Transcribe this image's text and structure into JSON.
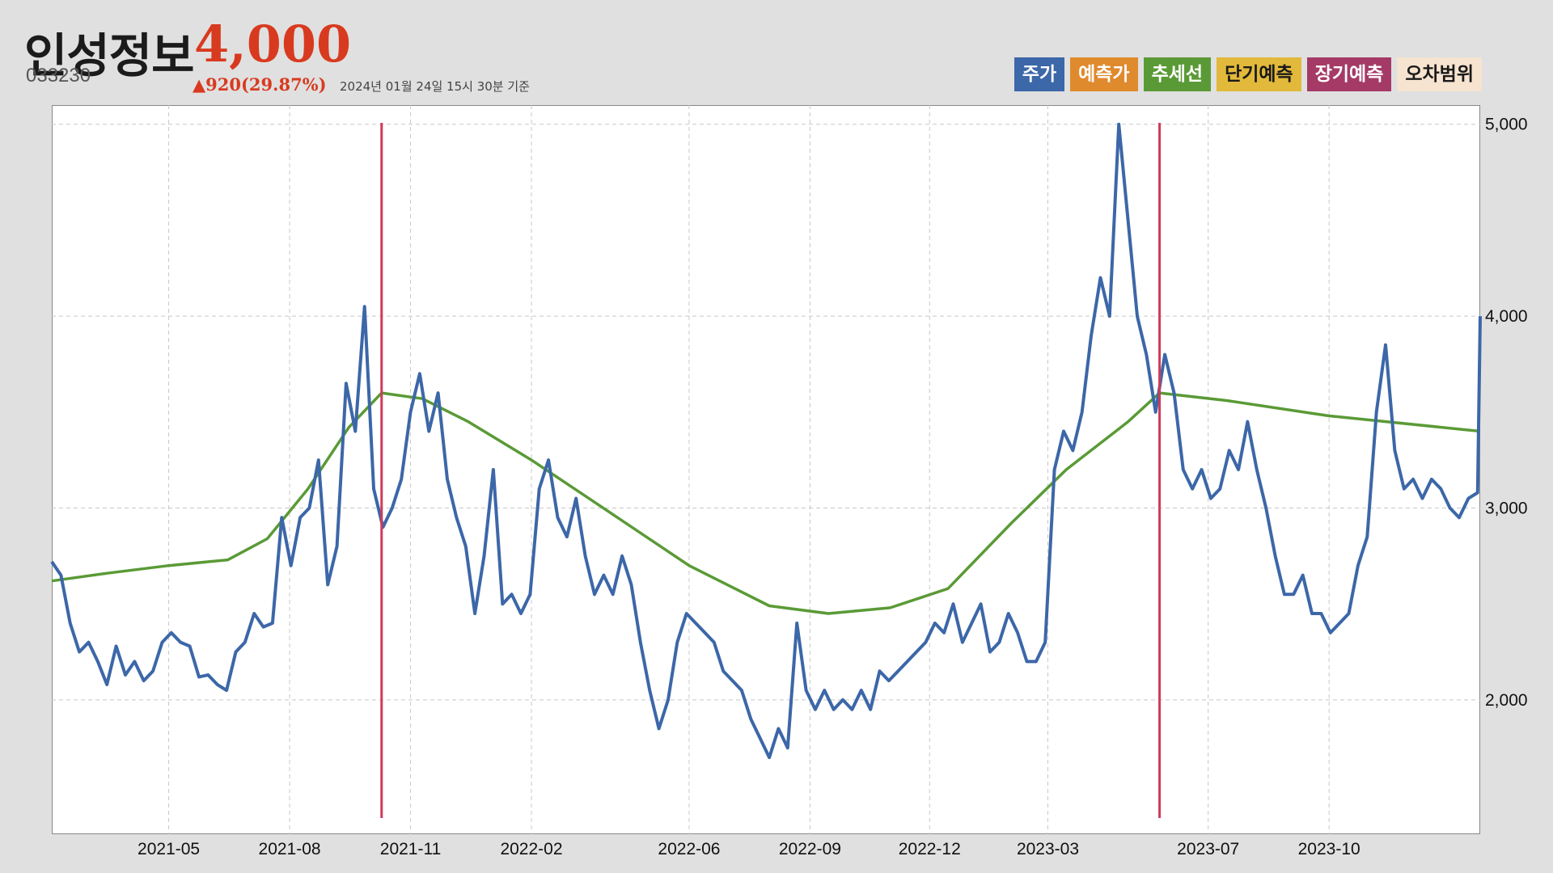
{
  "header": {
    "name": "인성정보",
    "code": "033230",
    "price": "4,000",
    "change": "▲920(29.87%)",
    "as_of": "2024년 01월 24일 15시 30분 기준"
  },
  "legend": [
    {
      "label": "주가",
      "color": "#3c67a8",
      "text_color": "#ffffff"
    },
    {
      "label": "예측가",
      "color": "#e08a2e",
      "text_color": "#ffffff"
    },
    {
      "label": "추세선",
      "color": "#5a9a36",
      "text_color": "#ffffff"
    },
    {
      "label": "단기예측",
      "color": "#e2b93a",
      "text_color": "#1a1a1a"
    },
    {
      "label": "장기예측",
      "color": "#a53a67",
      "text_color": "#ffffff"
    },
    {
      "label": "오차범위",
      "color": "#f6e4d0",
      "text_color": "#1a1a1a"
    }
  ],
  "chart_data": {
    "type": "line",
    "x_axis": {
      "range": [
        "2021-02-01",
        "2024-01-24"
      ],
      "ticks": [
        "2021-05",
        "2021-08",
        "2021-11",
        "2022-02",
        "2022-06",
        "2022-09",
        "2022-12",
        "2023-03",
        "2023-07",
        "2023-10"
      ]
    },
    "y_axis": {
      "position": "right",
      "range": [
        1300,
        5100
      ],
      "ticks": [
        2000,
        3000,
        4000,
        5000
      ],
      "tick_labels": [
        "2,000",
        "3,000",
        "4,000",
        "5,000"
      ]
    },
    "grid": true,
    "vertical_markers": [
      {
        "date": "2021-10-10",
        "color": "#d03a5a"
      },
      {
        "date": "2023-05-25",
        "color": "#d03a5a"
      }
    ],
    "series": [
      {
        "name": "주가",
        "color": "#3c67a8",
        "points": [
          [
            "2021-02-01",
            2720
          ],
          [
            "2021-02-08",
            2650
          ],
          [
            "2021-02-15",
            2400
          ],
          [
            "2021-02-22",
            2250
          ],
          [
            "2021-03-01",
            2300
          ],
          [
            "2021-03-08",
            2200
          ],
          [
            "2021-03-15",
            2080
          ],
          [
            "2021-03-22",
            2280
          ],
          [
            "2021-03-29",
            2130
          ],
          [
            "2021-04-05",
            2200
          ],
          [
            "2021-04-12",
            2100
          ],
          [
            "2021-04-19",
            2150
          ],
          [
            "2021-04-26",
            2300
          ],
          [
            "2021-05-03",
            2350
          ],
          [
            "2021-05-10",
            2300
          ],
          [
            "2021-05-17",
            2280
          ],
          [
            "2021-05-24",
            2120
          ],
          [
            "2021-05-31",
            2130
          ],
          [
            "2021-06-07",
            2080
          ],
          [
            "2021-06-14",
            2050
          ],
          [
            "2021-06-21",
            2250
          ],
          [
            "2021-06-28",
            2300
          ],
          [
            "2021-07-05",
            2450
          ],
          [
            "2021-07-12",
            2380
          ],
          [
            "2021-07-19",
            2400
          ],
          [
            "2021-07-26",
            2950
          ],
          [
            "2021-08-02",
            2700
          ],
          [
            "2021-08-09",
            2950
          ],
          [
            "2021-08-16",
            3000
          ],
          [
            "2021-08-23",
            3250
          ],
          [
            "2021-08-30",
            2600
          ],
          [
            "2021-09-06",
            2800
          ],
          [
            "2021-09-13",
            3650
          ],
          [
            "2021-09-20",
            3400
          ],
          [
            "2021-09-27",
            4050
          ],
          [
            "2021-10-04",
            3100
          ],
          [
            "2021-10-11",
            2900
          ],
          [
            "2021-10-18",
            3000
          ],
          [
            "2021-10-25",
            3150
          ],
          [
            "2021-11-01",
            3500
          ],
          [
            "2021-11-08",
            3700
          ],
          [
            "2021-11-15",
            3400
          ],
          [
            "2021-11-22",
            3600
          ],
          [
            "2021-11-29",
            3150
          ],
          [
            "2021-12-06",
            2950
          ],
          [
            "2021-12-13",
            2800
          ],
          [
            "2021-12-20",
            2450
          ],
          [
            "2021-12-27",
            2750
          ],
          [
            "2022-01-03",
            3200
          ],
          [
            "2022-01-10",
            2500
          ],
          [
            "2022-01-17",
            2550
          ],
          [
            "2022-01-24",
            2450
          ],
          [
            "2022-01-31",
            2550
          ],
          [
            "2022-02-07",
            3100
          ],
          [
            "2022-02-14",
            3250
          ],
          [
            "2022-02-21",
            2950
          ],
          [
            "2022-02-28",
            2850
          ],
          [
            "2022-03-07",
            3050
          ],
          [
            "2022-03-14",
            2750
          ],
          [
            "2022-03-21",
            2550
          ],
          [
            "2022-03-28",
            2650
          ],
          [
            "2022-04-04",
            2550
          ],
          [
            "2022-04-11",
            2750
          ],
          [
            "2022-04-18",
            2600
          ],
          [
            "2022-04-25",
            2300
          ],
          [
            "2022-05-02",
            2050
          ],
          [
            "2022-05-09",
            1850
          ],
          [
            "2022-05-16",
            2000
          ],
          [
            "2022-05-23",
            2300
          ],
          [
            "2022-05-30",
            2450
          ],
          [
            "2022-06-06",
            2400
          ],
          [
            "2022-06-13",
            2350
          ],
          [
            "2022-06-20",
            2300
          ],
          [
            "2022-06-27",
            2150
          ],
          [
            "2022-07-04",
            2100
          ],
          [
            "2022-07-11",
            2050
          ],
          [
            "2022-07-18",
            1900
          ],
          [
            "2022-07-25",
            1800
          ],
          [
            "2022-08-01",
            1700
          ],
          [
            "2022-08-08",
            1850
          ],
          [
            "2022-08-15",
            1750
          ],
          [
            "2022-08-22",
            2400
          ],
          [
            "2022-08-29",
            2050
          ],
          [
            "2022-09-05",
            1950
          ],
          [
            "2022-09-12",
            2050
          ],
          [
            "2022-09-19",
            1950
          ],
          [
            "2022-09-26",
            2000
          ],
          [
            "2022-10-03",
            1950
          ],
          [
            "2022-10-10",
            2050
          ],
          [
            "2022-10-17",
            1950
          ],
          [
            "2022-10-24",
            2150
          ],
          [
            "2022-10-31",
            2100
          ],
          [
            "2022-11-07",
            2150
          ],
          [
            "2022-11-14",
            2200
          ],
          [
            "2022-11-21",
            2250
          ],
          [
            "2022-11-28",
            2300
          ],
          [
            "2022-12-05",
            2400
          ],
          [
            "2022-12-12",
            2350
          ],
          [
            "2022-12-19",
            2500
          ],
          [
            "2022-12-26",
            2300
          ],
          [
            "2023-01-02",
            2400
          ],
          [
            "2023-01-09",
            2500
          ],
          [
            "2023-01-16",
            2250
          ],
          [
            "2023-01-23",
            2300
          ],
          [
            "2023-01-30",
            2450
          ],
          [
            "2023-02-06",
            2350
          ],
          [
            "2023-02-13",
            2200
          ],
          [
            "2023-02-20",
            2200
          ],
          [
            "2023-02-27",
            2300
          ],
          [
            "2023-03-06",
            3200
          ],
          [
            "2023-03-13",
            3400
          ],
          [
            "2023-03-20",
            3300
          ],
          [
            "2023-03-27",
            3500
          ],
          [
            "2023-04-03",
            3900
          ],
          [
            "2023-04-10",
            4200
          ],
          [
            "2023-04-17",
            4000
          ],
          [
            "2023-04-24",
            5000
          ],
          [
            "2023-05-01",
            4500
          ],
          [
            "2023-05-08",
            4000
          ],
          [
            "2023-05-15",
            3800
          ],
          [
            "2023-05-22",
            3500
          ],
          [
            "2023-05-29",
            3800
          ],
          [
            "2023-06-05",
            3600
          ],
          [
            "2023-06-12",
            3200
          ],
          [
            "2023-06-19",
            3100
          ],
          [
            "2023-06-26",
            3200
          ],
          [
            "2023-07-03",
            3050
          ],
          [
            "2023-07-10",
            3100
          ],
          [
            "2023-07-17",
            3300
          ],
          [
            "2023-07-24",
            3200
          ],
          [
            "2023-07-31",
            3450
          ],
          [
            "2023-08-07",
            3200
          ],
          [
            "2023-08-14",
            3000
          ],
          [
            "2023-08-21",
            2750
          ],
          [
            "2023-08-28",
            2550
          ],
          [
            "2023-09-04",
            2550
          ],
          [
            "2023-09-11",
            2650
          ],
          [
            "2023-09-18",
            2450
          ],
          [
            "2023-09-25",
            2450
          ],
          [
            "2023-10-02",
            2350
          ],
          [
            "2023-10-09",
            2400
          ],
          [
            "2023-10-16",
            2450
          ],
          [
            "2023-10-23",
            2700
          ],
          [
            "2023-10-30",
            2850
          ],
          [
            "2023-11-06",
            3500
          ],
          [
            "2023-11-13",
            3850
          ],
          [
            "2023-11-20",
            3300
          ],
          [
            "2023-11-27",
            3100
          ],
          [
            "2023-12-04",
            3150
          ],
          [
            "2023-12-11",
            3050
          ],
          [
            "2023-12-18",
            3150
          ],
          [
            "2023-12-25",
            3100
          ],
          [
            "2024-01-01",
            3000
          ],
          [
            "2024-01-08",
            2950
          ],
          [
            "2024-01-15",
            3050
          ],
          [
            "2024-01-22",
            3080
          ],
          [
            "2024-01-24",
            4000
          ]
        ]
      },
      {
        "name": "추세선",
        "color": "#5a9a36",
        "points": [
          [
            "2021-02-01",
            2620
          ],
          [
            "2021-03-15",
            2660
          ],
          [
            "2021-05-01",
            2700
          ],
          [
            "2021-06-15",
            2730
          ],
          [
            "2021-07-15",
            2840
          ],
          [
            "2021-08-15",
            3100
          ],
          [
            "2021-09-15",
            3420
          ],
          [
            "2021-10-10",
            3600
          ],
          [
            "2021-11-10",
            3570
          ],
          [
            "2021-12-15",
            3450
          ],
          [
            "2022-02-01",
            3250
          ],
          [
            "2022-04-01",
            2980
          ],
          [
            "2022-06-01",
            2700
          ],
          [
            "2022-08-01",
            2490
          ],
          [
            "2022-09-15",
            2450
          ],
          [
            "2022-11-01",
            2480
          ],
          [
            "2022-12-15",
            2580
          ],
          [
            "2023-02-01",
            2920
          ],
          [
            "2023-03-15",
            3200
          ],
          [
            "2023-05-01",
            3450
          ],
          [
            "2023-05-25",
            3600
          ],
          [
            "2023-07-15",
            3560
          ],
          [
            "2023-10-01",
            3480
          ],
          [
            "2024-01-24",
            3400
          ]
        ]
      }
    ]
  }
}
